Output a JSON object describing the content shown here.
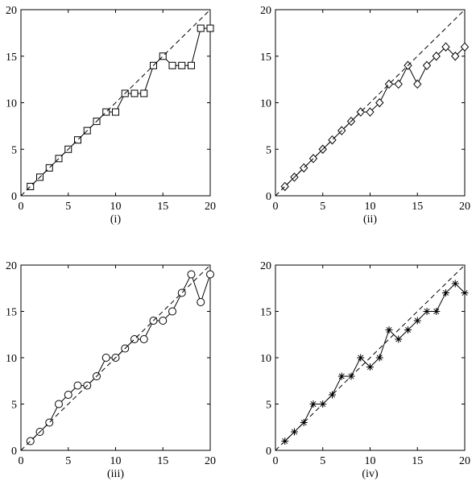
{
  "chart_data": [
    {
      "type": "line",
      "marker": "square",
      "label": "(i)",
      "x": [
        1,
        2,
        3,
        4,
        5,
        6,
        7,
        8,
        9,
        10,
        11,
        12,
        13,
        14,
        15,
        16,
        17,
        18,
        19,
        20
      ],
      "series": [
        {
          "values": [
            1,
            2,
            3,
            4,
            5,
            6,
            7,
            8,
            9,
            9,
            11,
            11,
            11,
            14,
            15,
            14,
            14,
            14,
            18,
            18
          ],
          "style": "solid",
          "markers": true
        },
        {
          "values": [
            0,
            20
          ],
          "x": [
            0,
            20
          ],
          "style": "dashed",
          "markers": false
        }
      ],
      "xlim": [
        0,
        20
      ],
      "ylim": [
        0,
        20
      ],
      "xticks": [
        0,
        5,
        10,
        15,
        20
      ],
      "yticks": [
        0,
        5,
        10,
        15,
        20
      ],
      "grid": false
    },
    {
      "type": "line",
      "marker": "diamond",
      "label": "(ii)",
      "x": [
        1,
        2,
        3,
        4,
        5,
        6,
        7,
        8,
        9,
        10,
        11,
        12,
        13,
        14,
        15,
        16,
        17,
        18,
        19,
        20
      ],
      "series": [
        {
          "values": [
            1,
            2,
            3,
            4,
            5,
            6,
            7,
            8,
            9,
            9,
            10,
            12,
            12,
            14,
            12,
            14,
            15,
            16,
            15,
            16
          ],
          "style": "solid",
          "markers": true
        },
        {
          "values": [
            0,
            20
          ],
          "x": [
            0,
            20
          ],
          "style": "dashed",
          "markers": false
        }
      ],
      "xlim": [
        0,
        20
      ],
      "ylim": [
        0,
        20
      ],
      "xticks": [
        0,
        5,
        10,
        15,
        20
      ],
      "yticks": [
        0,
        5,
        10,
        15,
        20
      ],
      "grid": false
    },
    {
      "type": "line",
      "marker": "circle",
      "label": "(iii)",
      "x": [
        1,
        2,
        3,
        4,
        5,
        6,
        7,
        8,
        9,
        10,
        11,
        12,
        13,
        14,
        15,
        16,
        17,
        18,
        19,
        20
      ],
      "series": [
        {
          "values": [
            1,
            2,
            3,
            5,
            6,
            7,
            7,
            8,
            10,
            10,
            11,
            12,
            12,
            14,
            14,
            15,
            17,
            19,
            16,
            19
          ],
          "style": "solid",
          "markers": true
        },
        {
          "values": [
            0,
            20
          ],
          "x": [
            0,
            20
          ],
          "style": "dashed",
          "markers": false
        }
      ],
      "xlim": [
        0,
        20
      ],
      "ylim": [
        0,
        20
      ],
      "xticks": [
        0,
        5,
        10,
        15,
        20
      ],
      "yticks": [
        0,
        5,
        10,
        15,
        20
      ],
      "grid": false
    },
    {
      "type": "line",
      "marker": "asterisk",
      "label": "(iv)",
      "x": [
        1,
        2,
        3,
        4,
        5,
        6,
        7,
        8,
        9,
        10,
        11,
        12,
        13,
        14,
        15,
        16,
        17,
        18,
        19,
        20
      ],
      "series": [
        {
          "values": [
            1,
            2,
            3,
            5,
            5,
            6,
            8,
            8,
            10,
            9,
            10,
            13,
            12,
            13,
            14,
            15,
            15,
            17,
            18,
            17
          ],
          "style": "solid",
          "markers": true
        },
        {
          "values": [
            0,
            20
          ],
          "x": [
            0,
            20
          ],
          "style": "dashed",
          "markers": false
        }
      ],
      "xlim": [
        0,
        20
      ],
      "ylim": [
        0,
        20
      ],
      "xticks": [
        0,
        5,
        10,
        15,
        20
      ],
      "yticks": [
        0,
        5,
        10,
        15,
        20
      ],
      "grid": false
    }
  ]
}
